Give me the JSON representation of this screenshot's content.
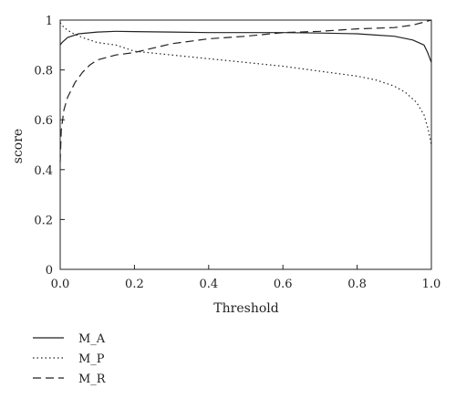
{
  "chart_data": {
    "type": "line",
    "title": "",
    "xlabel": "Threshold",
    "ylabel": "score",
    "xlim": [
      0,
      1
    ],
    "ylim": [
      0,
      1
    ],
    "xticks": [
      "0.0",
      "0.2",
      "0.4",
      "0.6",
      "0.8",
      "1.0"
    ],
    "yticks": [
      "0",
      "0.2",
      "0.4",
      "0.6",
      "0.8",
      "1"
    ],
    "grid": false,
    "legend_position": "below-left",
    "series": [
      {
        "name": "M_A",
        "style": "solid",
        "x": [
          0.0,
          0.005,
          0.02,
          0.05,
          0.1,
          0.15,
          0.2,
          0.3,
          0.4,
          0.5,
          0.6,
          0.7,
          0.8,
          0.85,
          0.9,
          0.95,
          0.98,
          0.99,
          1.0
        ],
        "y": [
          0.9,
          0.91,
          0.93,
          0.945,
          0.952,
          0.955,
          0.954,
          0.952,
          0.95,
          0.95,
          0.95,
          0.948,
          0.945,
          0.94,
          0.935,
          0.92,
          0.9,
          0.87,
          0.83
        ]
      },
      {
        "name": "M_P",
        "style": "dotted",
        "x": [
          0.0,
          0.01,
          0.03,
          0.06,
          0.1,
          0.15,
          0.2,
          0.3,
          0.4,
          0.5,
          0.6,
          0.7,
          0.8,
          0.85,
          0.9,
          0.93,
          0.96,
          0.98,
          0.99,
          1.0
        ],
        "y": [
          0.99,
          0.97,
          0.95,
          0.93,
          0.91,
          0.9,
          0.875,
          0.86,
          0.845,
          0.83,
          0.815,
          0.795,
          0.775,
          0.76,
          0.735,
          0.71,
          0.67,
          0.62,
          0.57,
          0.5
        ]
      },
      {
        "name": "M_R",
        "style": "dashed",
        "x": [
          0.0,
          0.003,
          0.01,
          0.02,
          0.04,
          0.06,
          0.08,
          0.1,
          0.15,
          0.2,
          0.3,
          0.4,
          0.5,
          0.6,
          0.7,
          0.8,
          0.9,
          0.95,
          1.0
        ],
        "y": [
          0.43,
          0.56,
          0.64,
          0.69,
          0.75,
          0.79,
          0.82,
          0.84,
          0.86,
          0.87,
          0.905,
          0.925,
          0.935,
          0.95,
          0.955,
          0.965,
          0.97,
          0.98,
          1.0
        ]
      }
    ]
  }
}
